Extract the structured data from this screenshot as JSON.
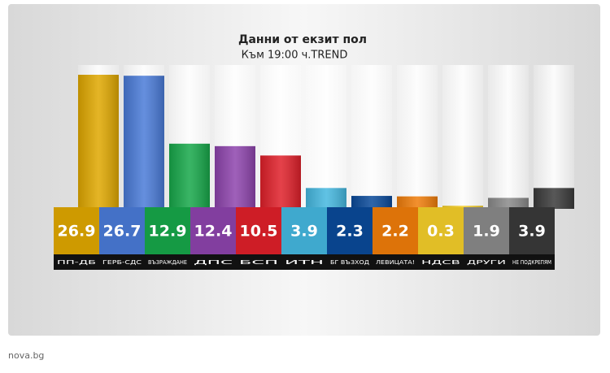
{
  "chart_data": {
    "type": "bar",
    "title": "Данни от екзит пол",
    "subtitle": "Към 19:00 ч.TREND",
    "categories": [
      "ПП-ДБ",
      "ГЕРБ-СДС",
      "ВЪЗРАЖДАНЕ",
      "ДПС",
      "БСП",
      "ИТН",
      "БГ ВЪЗХОД",
      "ЛЕВИЦАТА!",
      "НДСВ",
      "ДРУГИ",
      "НЕ ПОДКРЕПЯМ"
    ],
    "values": [
      26.9,
      26.7,
      12.9,
      12.4,
      10.5,
      3.9,
      2.3,
      2.2,
      0.3,
      1.9,
      3.9
    ],
    "colors": [
      "#e0a800",
      "#4a7bd8",
      "#17a84a",
      "#8e44ad",
      "#e0202a",
      "#45b8e0",
      "#0a4a9a",
      "#f07d0a",
      "#f5cf2a",
      "#8a8a8a",
      "#3a3a3a"
    ]
  },
  "source": "nova.bg"
}
